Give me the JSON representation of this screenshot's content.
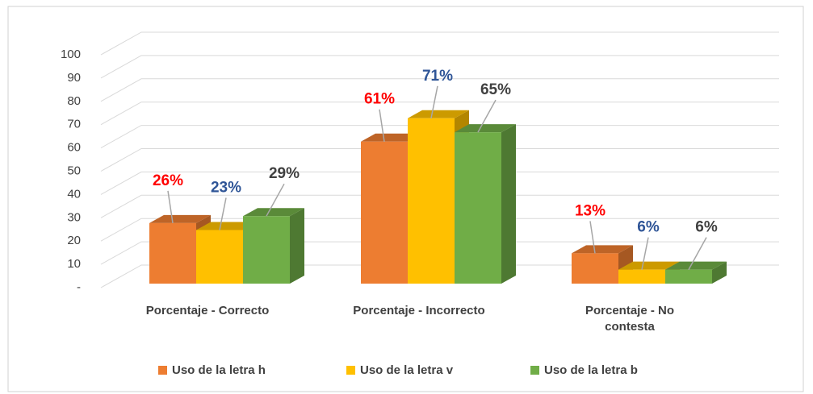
{
  "chart_data": {
    "type": "bar3d",
    "categories": [
      "Porcentaje - Correcto",
      "Porcentaje - Incorrecto",
      "Porcentaje - No contesta"
    ],
    "series": [
      {
        "name": "Uso de la letra h",
        "color": "#ed7d31",
        "label_color": "#ff0000",
        "values": [
          26,
          61,
          13
        ],
        "value_labels": [
          "26%",
          "61%",
          "13%"
        ]
      },
      {
        "name": "Uso de la letra v",
        "color": "#ffc000",
        "label_color": "#2f5597",
        "values": [
          23,
          71,
          6
        ],
        "value_labels": [
          "23%",
          "71%",
          "6%"
        ]
      },
      {
        "name": "Uso de la letra b",
        "color": "#70ad47",
        "label_color": "#404040",
        "values": [
          29,
          65,
          6
        ],
        "value_labels": [
          "29%",
          "65%",
          "6%"
        ]
      }
    ],
    "ylim": [
      0,
      100
    ],
    "yticks": [
      {
        "value": 0,
        "label": "-"
      },
      10,
      20,
      30,
      40,
      50,
      60,
      70,
      80,
      90,
      100
    ],
    "grid": true,
    "legend": "bottom"
  }
}
